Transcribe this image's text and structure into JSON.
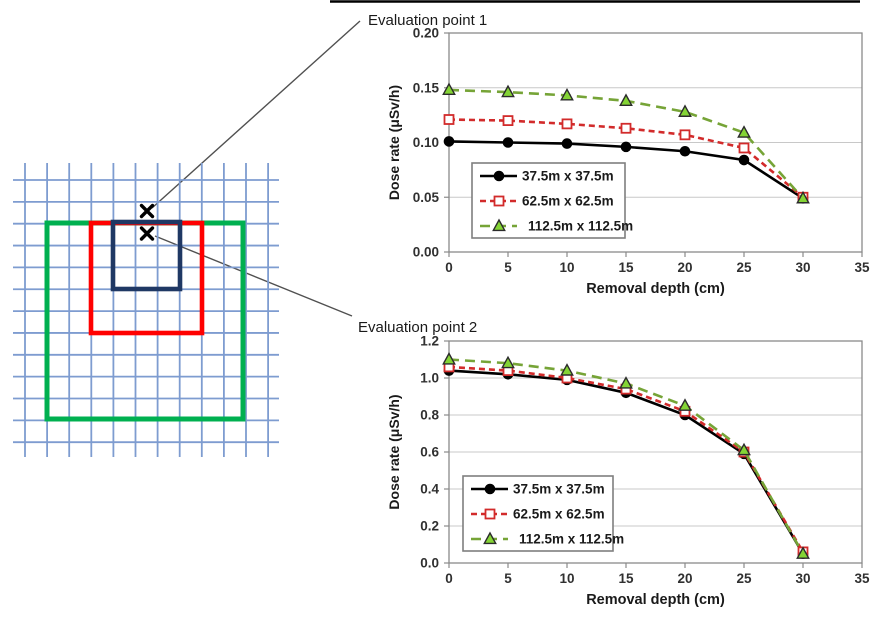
{
  "diagram": {
    "grid_color": "#7E9CD0",
    "squares": [
      {
        "id": "37.5m x 37.5m",
        "color": "#1F3864"
      },
      {
        "id": "62.5m x 62.5m",
        "color": "#FF0000"
      },
      {
        "id": "112.5m x 112.5m",
        "color": "#00B050"
      }
    ],
    "evaluation_markers": [
      "evaluation-point-1",
      "evaluation-point-2"
    ],
    "marker_color": "#000000",
    "callout_line_color": "#505050"
  },
  "chart_data": [
    {
      "type": "line",
      "title": "Evaluation point 1",
      "xlabel": "Removal depth (cm)",
      "ylabel": "Dose rate (μSv/h)",
      "xlim": [
        0,
        35
      ],
      "ylim": [
        0,
        0.2
      ],
      "xtick_labels": [
        "0",
        "5",
        "10",
        "15",
        "20",
        "25",
        "30",
        "35"
      ],
      "ytick_labels": [
        "0.00",
        "0.05",
        "0.10",
        "0.15",
        "0.20"
      ],
      "grid": true,
      "legend_position": "inside lower-left",
      "x": [
        0,
        5,
        10,
        15,
        20,
        25,
        30
      ],
      "series": [
        {
          "name": "37.5m x 37.5m",
          "line_color": "#000000",
          "line_style": "solid",
          "marker": {
            "shape": "circle",
            "fill": "#000000",
            "stroke": "#000000"
          },
          "values": [
            0.101,
            0.1,
            0.099,
            0.096,
            0.092,
            0.084,
            0.049
          ]
        },
        {
          "name": "62.5m x 62.5m",
          "line_color": "#D22B2B",
          "line_style": "dashed",
          "marker": {
            "shape": "square",
            "fill": "#FFFFFF",
            "stroke": "#D22B2B"
          },
          "values": [
            0.121,
            0.12,
            0.117,
            0.113,
            0.107,
            0.095,
            0.05
          ]
        },
        {
          "name": "112.5m x 112.5m",
          "line_color": "#76A437",
          "line_style": "long-dash",
          "marker": {
            "shape": "triangle",
            "fill": "#84D435",
            "stroke": "#2B2B2B"
          },
          "values": [
            0.148,
            0.146,
            0.143,
            0.138,
            0.128,
            0.109,
            0.049
          ]
        }
      ]
    },
    {
      "type": "line",
      "title": "Evaluation point 2",
      "xlabel": "Removal depth (cm)",
      "ylabel": "Dose rate (μSv/h)",
      "xlim": [
        0,
        35
      ],
      "ylim": [
        0,
        1.2
      ],
      "xtick_labels": [
        "0",
        "5",
        "10",
        "15",
        "20",
        "25",
        "30",
        "35"
      ],
      "ytick_labels": [
        "0.0",
        "0.2",
        "0.4",
        "0.6",
        "0.8",
        "1.0",
        "1.2"
      ],
      "grid": true,
      "legend_position": "inside lower-left",
      "x": [
        0,
        5,
        10,
        15,
        20,
        25,
        30
      ],
      "series": [
        {
          "name": "37.5m x 37.5m",
          "line_color": "#000000",
          "line_style": "solid",
          "marker": {
            "shape": "circle",
            "fill": "#000000",
            "stroke": "#000000"
          },
          "values": [
            1.04,
            1.02,
            0.99,
            0.92,
            0.8,
            0.59,
            0.05
          ]
        },
        {
          "name": "62.5m x 62.5m",
          "line_color": "#D22B2B",
          "line_style": "dashed",
          "marker": {
            "shape": "square",
            "fill": "#FFFFFF",
            "stroke": "#D22B2B"
          },
          "values": [
            1.06,
            1.04,
            1.0,
            0.94,
            0.82,
            0.6,
            0.06
          ]
        },
        {
          "name": "112.5m x 112.5m",
          "line_color": "#76A437",
          "line_style": "long-dash",
          "marker": {
            "shape": "triangle",
            "fill": "#84D435",
            "stroke": "#2B2B2B"
          },
          "values": [
            1.1,
            1.08,
            1.04,
            0.97,
            0.85,
            0.61,
            0.05
          ]
        }
      ]
    }
  ]
}
